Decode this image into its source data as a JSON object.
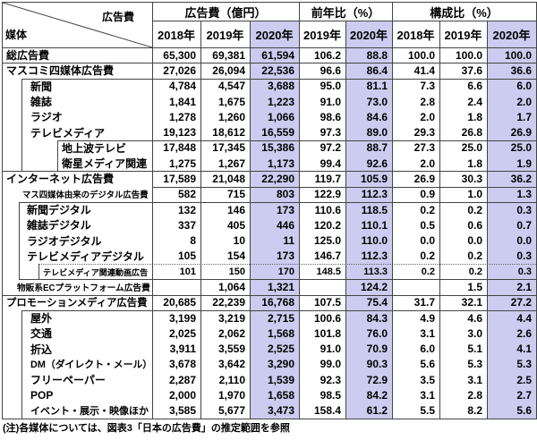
{
  "header": {
    "corner": {
      "top_label": "広告費",
      "bottom_label": "媒体"
    }
  },
  "note": "(注)各媒体については、図表3「日本の広告費」の推定範囲を参照",
  "colors": {
    "highlight_2020": "#ccccf0",
    "grid": "#444444",
    "text": "#000000"
  },
  "chart_data": {
    "type": "table",
    "title": "日本の広告費 媒体別一覧",
    "column_groups": [
      {
        "label": "広告費（億円）",
        "years": [
          "2018年",
          "2019年",
          "2020年"
        ]
      },
      {
        "label": "前年比（%）",
        "years": [
          "2019年",
          "2020年"
        ]
      },
      {
        "label": "構成比（%）",
        "years": [
          "2018年",
          "2019年",
          "2020年"
        ]
      }
    ],
    "highlight_note": "2020年の列は薄紫の網掛け",
    "rows": [
      {
        "label": "総広告費",
        "level": 0,
        "values": [
          65300,
          69381,
          61594,
          106.2,
          88.8,
          100.0,
          100.0,
          100.0
        ]
      },
      {
        "label": "マスコミ四媒体広告費",
        "level": 0,
        "values": [
          27026,
          26094,
          22536,
          96.6,
          86.4,
          41.4,
          37.6,
          36.6
        ]
      },
      {
        "label": "新聞",
        "level": 1,
        "values": [
          4784,
          4547,
          3688,
          95.0,
          81.1,
          7.3,
          6.6,
          6.0
        ]
      },
      {
        "label": "雑誌",
        "level": 1,
        "values": [
          1841,
          1675,
          1223,
          91.0,
          73.0,
          2.8,
          2.4,
          2.0
        ]
      },
      {
        "label": "ラジオ",
        "level": 1,
        "values": [
          1278,
          1260,
          1066,
          98.6,
          84.6,
          2.0,
          1.8,
          1.7
        ]
      },
      {
        "label": "テレビメディア",
        "level": 1,
        "values": [
          19123,
          18612,
          16559,
          97.3,
          89.0,
          29.3,
          26.8,
          26.9
        ]
      },
      {
        "label": "地上波テレビ",
        "level": 2,
        "values": [
          17848,
          17345,
          15386,
          97.2,
          88.7,
          27.3,
          25.0,
          25.0
        ]
      },
      {
        "label": "衛星メディア関連",
        "level": 2,
        "values": [
          1275,
          1267,
          1173,
          99.4,
          92.6,
          2.0,
          1.8,
          1.9
        ]
      },
      {
        "label": "インターネット広告費",
        "level": 0,
        "values": [
          17589,
          21048,
          22290,
          119.7,
          105.9,
          26.9,
          30.3,
          36.2
        ]
      },
      {
        "label": "マス四媒体由来のデジタル広告費",
        "level": 1,
        "values": [
          582,
          715,
          803,
          122.9,
          112.3,
          0.9,
          1.0,
          1.3
        ]
      },
      {
        "label": "新聞デジタル",
        "level": 2,
        "values": [
          132,
          146,
          173,
          110.6,
          118.5,
          0.2,
          0.2,
          0.3
        ]
      },
      {
        "label": "雑誌デジタル",
        "level": 2,
        "values": [
          337,
          405,
          446,
          120.2,
          110.1,
          0.5,
          0.6,
          0.7
        ]
      },
      {
        "label": "ラジオデジタル",
        "level": 2,
        "values": [
          8,
          10,
          11,
          125.0,
          110.0,
          0.0,
          0.0,
          0.0
        ]
      },
      {
        "label": "テレビメディアデジタル",
        "level": 2,
        "values": [
          105,
          154,
          173,
          146.7,
          112.3,
          0.2,
          0.2,
          0.3
        ]
      },
      {
        "label": "テレビメディア関連動画広告",
        "level": 3,
        "values": [
          101,
          150,
          170,
          148.5,
          113.3,
          0.2,
          0.2,
          0.3
        ]
      },
      {
        "label": "物販系ECプラットフォーム広告費",
        "level": 1,
        "values": [
          null,
          1064,
          1321,
          null,
          124.2,
          null,
          1.5,
          2.1
        ]
      },
      {
        "label": "プロモーションメディア広告費",
        "level": 0,
        "values": [
          20685,
          22239,
          16768,
          107.5,
          75.4,
          31.7,
          32.1,
          27.2
        ]
      },
      {
        "label": "屋外",
        "level": 1,
        "values": [
          3199,
          3219,
          2715,
          100.6,
          84.3,
          4.9,
          4.6,
          4.4
        ]
      },
      {
        "label": "交通",
        "level": 1,
        "values": [
          2025,
          2062,
          1568,
          101.8,
          76.0,
          3.1,
          3.0,
          2.6
        ]
      },
      {
        "label": "折込",
        "level": 1,
        "values": [
          3911,
          3559,
          2525,
          91.0,
          70.9,
          6.0,
          5.1,
          4.1
        ]
      },
      {
        "label": "DM（ダイレクト・メール）",
        "level": 1,
        "values": [
          3678,
          3642,
          3290,
          99.0,
          90.3,
          5.6,
          5.3,
          5.3
        ]
      },
      {
        "label": "フリーペーパー",
        "level": 1,
        "values": [
          2287,
          2110,
          1539,
          92.3,
          72.9,
          3.5,
          3.1,
          2.5
        ]
      },
      {
        "label": "POP",
        "level": 1,
        "values": [
          2000,
          1970,
          1658,
          98.5,
          84.2,
          3.1,
          2.8,
          2.7
        ]
      },
      {
        "label": "イベント・展示・映像ほか",
        "level": 1,
        "values": [
          3585,
          5677,
          3473,
          158.4,
          61.2,
          5.5,
          8.2,
          5.6
        ]
      }
    ]
  }
}
